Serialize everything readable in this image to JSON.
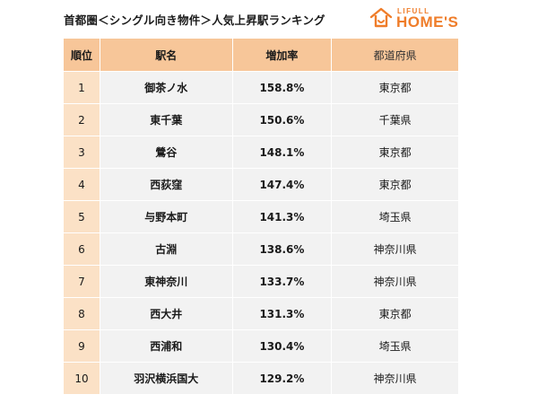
{
  "title": "首都圏＜シングル向き物件＞人気上昇駅ランキング",
  "logo": {
    "small": "LIFULL",
    "big": "HOME'S"
  },
  "table": {
    "headers": [
      "順位",
      "駅名",
      "増加率",
      "都道府県"
    ],
    "rows": [
      {
        "rank": "1",
        "station": "御茶ノ水",
        "rate": "158.8%",
        "prefecture": "東京都"
      },
      {
        "rank": "2",
        "station": "東千葉",
        "rate": "150.6%",
        "prefecture": "千葉県"
      },
      {
        "rank": "3",
        "station": "鶯谷",
        "rate": "148.1%",
        "prefecture": "東京都"
      },
      {
        "rank": "4",
        "station": "西荻窪",
        "rate": "147.4%",
        "prefecture": "東京都"
      },
      {
        "rank": "5",
        "station": "与野本町",
        "rate": "141.3%",
        "prefecture": "埼玉県"
      },
      {
        "rank": "6",
        "station": "古淵",
        "rate": "138.6%",
        "prefecture": "神奈川県"
      },
      {
        "rank": "7",
        "station": "東神奈川",
        "rate": "133.7%",
        "prefecture": "神奈川県"
      },
      {
        "rank": "8",
        "station": "西大井",
        "rate": "131.3%",
        "prefecture": "東京都"
      },
      {
        "rank": "9",
        "station": "西浦和",
        "rate": "130.4%",
        "prefecture": "埼玉県"
      },
      {
        "rank": "10",
        "station": "羽沢横浜国大",
        "rate": "129.2%",
        "prefecture": "神奈川県"
      }
    ]
  },
  "colors": {
    "header_bg": "#f7c699",
    "rank_bg": "#fbe1c6",
    "cell_bg": "#f2f2f2",
    "brand_orange": "#ef7d2a"
  }
}
